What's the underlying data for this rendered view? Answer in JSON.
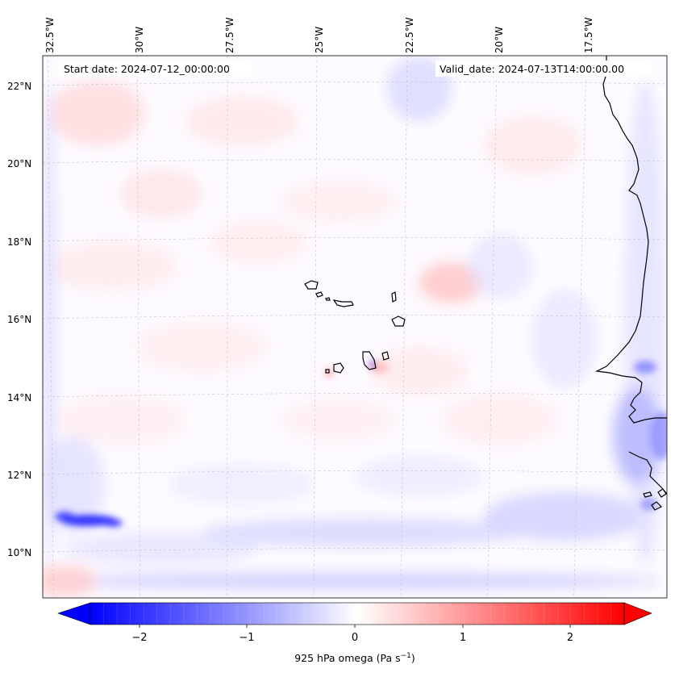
{
  "header": {
    "start_date": "Start date: 2024-07-12_00:00:00",
    "valid_date": "Valid_date: 2024-07-13T14:00:00.00"
  },
  "axes": {
    "top_lon_labels": [
      "32.5°W",
      "30°W",
      "27.5°W",
      "25°W",
      "22.5°W",
      "20°W",
      "17.5°W"
    ],
    "left_lat_labels": [
      "22°N",
      "20°N",
      "18°N",
      "16°N",
      "14°N",
      "12°N",
      "10°N"
    ]
  },
  "colorbar": {
    "ticks": [
      "−2",
      "−1",
      "0",
      "1",
      "2"
    ],
    "label_main": "925 hPa omega (Pa s",
    "label_sup": "−1",
    "label_close": ")",
    "vmin": -2.75,
    "vmax": 2.75,
    "low_color": "#0000ff",
    "mid_color": "#ffffff",
    "high_color": "#ff0000"
  },
  "map": {
    "field": "925 hPa omega",
    "coastline_color": "#000000"
  }
}
